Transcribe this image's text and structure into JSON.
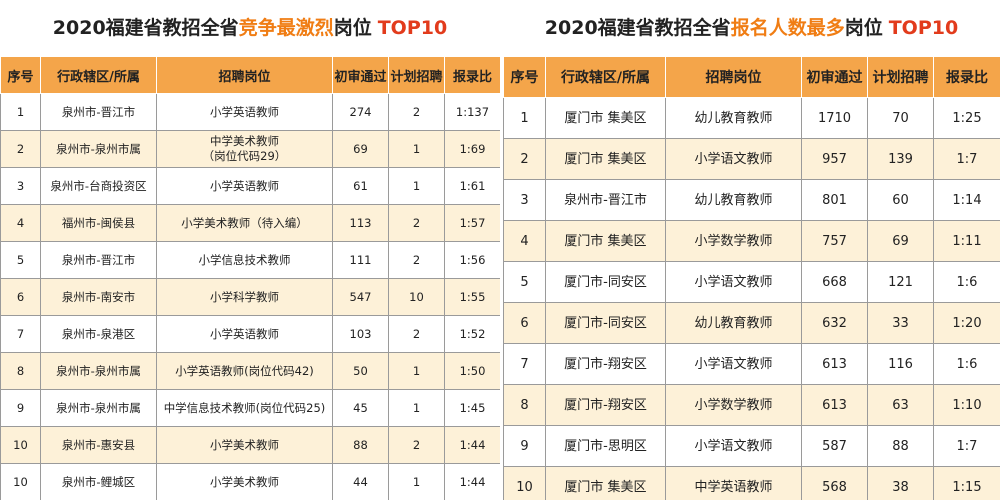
{
  "left": {
    "title_prefix": "2020福建省教招全省",
    "title_highlight": "竞争最激烈",
    "title_suffix": "岗位",
    "title_top": "TOP10",
    "headers": [
      "序号",
      "行政辖区/所属",
      "招聘岗位",
      "初审通过",
      "计划招聘",
      "报录比"
    ],
    "rows": [
      [
        "1",
        "泉州市-晋江市",
        "小学英语教师",
        "274",
        "2",
        "1:137"
      ],
      [
        "2",
        "泉州市-泉州市属",
        "中学美术教师\n（岗位代码29）",
        "69",
        "1",
        "1:69"
      ],
      [
        "3",
        "泉州市-台商投资区",
        "小学英语教师",
        "61",
        "1",
        "1:61"
      ],
      [
        "4",
        "福州市-闽侯县",
        "小学美术教师（待入编）",
        "113",
        "2",
        "1:57"
      ],
      [
        "5",
        "泉州市-晋江市",
        "小学信息技术教师",
        "111",
        "2",
        "1:56"
      ],
      [
        "6",
        "泉州市-南安市",
        "小学科学教师",
        "547",
        "10",
        "1:55"
      ],
      [
        "7",
        "泉州市-泉港区",
        "小学英语教师",
        "103",
        "2",
        "1:52"
      ],
      [
        "8",
        "泉州市-泉州市属",
        "小学英语教师(岗位代码42)",
        "50",
        "1",
        "1:50"
      ],
      [
        "9",
        "泉州市-泉州市属",
        "中学信息技术教师(岗位代码25)",
        "45",
        "1",
        "1:45"
      ],
      [
        "10",
        "泉州市-惠安县",
        "小学美术教师",
        "88",
        "2",
        "1:44"
      ],
      [
        "10",
        "泉州市-鲤城区",
        "小学美术教师",
        "44",
        "1",
        "1:44"
      ]
    ]
  },
  "right": {
    "title_prefix": "2020福建省教招全省",
    "title_highlight": "报名人数最多",
    "title_suffix": "岗位",
    "title_top": "TOP10",
    "headers": [
      "序号",
      "行政辖区/所属",
      "招聘岗位",
      "初审通过",
      "计划招聘",
      "报录比"
    ],
    "rows": [
      [
        "1",
        "厦门市 集美区",
        "幼儿教育教师",
        "1710",
        "70",
        "1:25"
      ],
      [
        "2",
        "厦门市 集美区",
        "小学语文教师",
        "957",
        "139",
        "1:7"
      ],
      [
        "3",
        "泉州市-晋江市",
        "幼儿教育教师",
        "801",
        "60",
        "1:14"
      ],
      [
        "4",
        "厦门市 集美区",
        "小学数学教师",
        "757",
        "69",
        "1:11"
      ],
      [
        "5",
        "厦门市-同安区",
        "小学语文教师",
        "668",
        "121",
        "1:6"
      ],
      [
        "6",
        "厦门市-同安区",
        "幼儿教育教师",
        "632",
        "33",
        "1:20"
      ],
      [
        "7",
        "厦门市-翔安区",
        "小学语文教师",
        "613",
        "116",
        "1:6"
      ],
      [
        "8",
        "厦门市-翔安区",
        "小学数学教师",
        "613",
        "63",
        "1:10"
      ],
      [
        "9",
        "厦门市-思明区",
        "小学语文教师",
        "587",
        "88",
        "1:7"
      ],
      [
        "10",
        "厦门市 集美区",
        "中学英语教师",
        "568",
        "38",
        "1:15"
      ]
    ]
  }
}
